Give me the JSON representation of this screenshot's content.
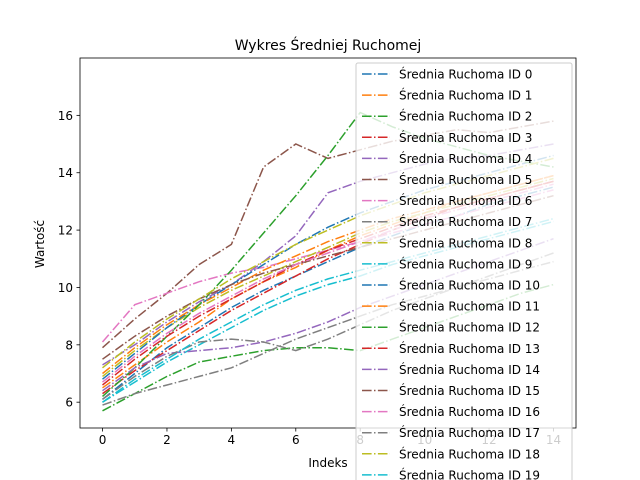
{
  "chart_data": {
    "type": "line",
    "title": "Wykres Średniej Ruchomej",
    "xlabel": "Indeks",
    "ylabel": "Wartość",
    "xlim": [
      -0.7,
      14.7
    ],
    "ylim": [
      5.1,
      18.0
    ],
    "xticks": [
      0,
      2,
      4,
      6,
      8,
      10,
      12,
      14
    ],
    "yticks": [
      6,
      8,
      10,
      12,
      14,
      16
    ],
    "line_style": "dash-dot",
    "legend_position": "top-right",
    "x": [
      0,
      1,
      2,
      3,
      4,
      5,
      6,
      7,
      8,
      9,
      10,
      11,
      12,
      13,
      14
    ],
    "series": [
      {
        "name": "Średnia Ruchoma ID 0",
        "color": "#1f77b4",
        "values": [
          6.1,
          7.0,
          7.9,
          8.6,
          9.3,
          9.9,
          10.4,
          10.9,
          11.4,
          11.8,
          12.2,
          12.5,
          12.9,
          13.2,
          13.5
        ]
      },
      {
        "name": "Średnia Ruchoma ID 1",
        "color": "#ff7f0e",
        "values": [
          6.5,
          7.3,
          8.1,
          8.8,
          9.6,
          10.2,
          10.7,
          11.3,
          11.8,
          12.2,
          12.6,
          13.0,
          13.3,
          13.6,
          13.9
        ]
      },
      {
        "name": "Średnia Ruchoma ID 2",
        "color": "#2ca02c",
        "values": [
          5.7,
          6.3,
          6.9,
          7.4,
          7.6,
          7.8,
          7.9,
          7.9,
          7.8,
          8.2,
          8.6,
          9.0,
          9.4,
          9.8,
          10.1
        ]
      },
      {
        "name": "Średnia Ruchoma ID 3",
        "color": "#d62728",
        "values": [
          6.3,
          7.1,
          7.8,
          8.5,
          9.2,
          9.8,
          10.4,
          11.0,
          11.5,
          12.0,
          12.4,
          12.8,
          13.1,
          13.4,
          13.7
        ]
      },
      {
        "name": "Średnia Ruchoma ID 4",
        "color": "#9467bd",
        "values": [
          7.3,
          8.0,
          8.8,
          9.5,
          10.1,
          10.9,
          11.8,
          13.3,
          13.7,
          14.0,
          14.3,
          14.5,
          14.6,
          14.8,
          15.0
        ]
      },
      {
        "name": "Średnia Ruchoma ID 5",
        "color": "#8c564b",
        "values": [
          7.9,
          8.9,
          9.8,
          10.8,
          11.5,
          14.2,
          15.0,
          14.5,
          14.8,
          15.1,
          15.3,
          15.5,
          15.4,
          15.6,
          15.8
        ]
      },
      {
        "name": "Średnia Ruchoma ID 6",
        "color": "#e377c2",
        "values": [
          8.1,
          9.4,
          9.8,
          10.2,
          10.5,
          10.7,
          11.0,
          11.3,
          11.6,
          11.9,
          12.2,
          12.5,
          12.8,
          13.1,
          13.4
        ]
      },
      {
        "name": "Średnia Ruchoma ID 7",
        "color": "#7f7f7f",
        "values": [
          5.9,
          6.3,
          6.6,
          6.9,
          7.2,
          7.7,
          8.2,
          8.6,
          9.0,
          9.4,
          9.7,
          10.0,
          10.3,
          10.6,
          10.9
        ]
      },
      {
        "name": "Średnia Ruchoma ID 8",
        "color": "#bcbd22",
        "values": [
          6.9,
          7.8,
          8.6,
          9.3,
          9.9,
          10.4,
          10.9,
          11.4,
          11.9,
          12.3,
          12.6,
          12.9,
          13.2,
          13.5,
          13.8
        ]
      },
      {
        "name": "Średnia Ruchoma ID 9",
        "color": "#17becf",
        "values": [
          6.0,
          6.7,
          7.4,
          8.0,
          8.6,
          9.2,
          9.7,
          10.1,
          10.4,
          10.8,
          11.1,
          11.4,
          11.7,
          12.0,
          12.3
        ]
      },
      {
        "name": "Średnia Ruchoma ID 10",
        "color": "#1f77b4",
        "values": [
          6.8,
          7.7,
          8.6,
          9.4,
          10.1,
          10.8,
          11.5,
          12.1,
          12.6,
          13.0,
          13.4,
          13.7,
          14.0,
          14.3,
          14.6
        ]
      },
      {
        "name": "Średnia Ruchoma ID 11",
        "color": "#ff7f0e",
        "values": [
          7.0,
          7.9,
          8.7,
          9.4,
          10.0,
          10.6,
          11.1,
          11.6,
          12.0,
          12.4,
          12.7,
          13.0,
          13.3,
          13.6,
          13.9
        ]
      },
      {
        "name": "Średnia Ruchoma ID 12",
        "color": "#2ca02c",
        "values": [
          6.2,
          7.2,
          8.3,
          9.4,
          10.6,
          11.9,
          13.2,
          14.6,
          16.1,
          15.6,
          15.2,
          14.9,
          14.6,
          14.4,
          14.2
        ]
      },
      {
        "name": "Średnia Ruchoma ID 13",
        "color": "#d62728",
        "values": [
          6.6,
          7.5,
          8.3,
          9.0,
          9.6,
          10.2,
          10.8,
          11.3,
          11.7,
          12.1,
          12.5,
          12.8,
          13.1,
          13.4,
          13.7
        ]
      },
      {
        "name": "Średnia Ruchoma ID 14",
        "color": "#9467bd",
        "values": [
          6.4,
          7.2,
          7.7,
          7.8,
          7.9,
          8.1,
          8.4,
          8.8,
          9.3,
          9.7,
          10.1,
          10.5,
          10.9,
          11.3,
          11.7
        ]
      },
      {
        "name": "Średnia Ruchoma ID 15",
        "color": "#8c564b",
        "values": [
          7.5,
          8.3,
          9.0,
          9.6,
          10.1,
          10.5,
          10.8,
          11.1,
          11.4,
          11.7,
          12.0,
          12.3,
          12.6,
          12.9,
          13.2
        ]
      },
      {
        "name": "Średnia Ruchoma ID 16",
        "color": "#e377c2",
        "values": [
          6.7,
          7.6,
          8.4,
          9.1,
          9.7,
          10.3,
          10.8,
          11.2,
          11.6,
          12.0,
          12.4,
          12.7,
          13.0,
          13.3,
          13.6
        ]
      },
      {
        "name": "Średnia Ruchoma ID 17",
        "color": "#7f7f7f",
        "values": [
          6.1,
          6.9,
          7.6,
          8.1,
          8.2,
          8.1,
          7.8,
          8.2,
          8.7,
          9.2,
          9.6,
          10.0,
          10.4,
          10.8,
          11.2
        ]
      },
      {
        "name": "Średnia Ruchoma ID 18",
        "color": "#bcbd22",
        "values": [
          7.2,
          8.1,
          8.9,
          9.6,
          10.3,
          10.9,
          11.5,
          12.0,
          12.5,
          12.9,
          13.3,
          13.6,
          13.9,
          14.2,
          14.5
        ]
      },
      {
        "name": "Średnia Ruchoma ID 19",
        "color": "#17becf",
        "values": [
          6.0,
          6.8,
          7.5,
          8.2,
          8.8,
          9.4,
          9.9,
          10.3,
          10.6,
          10.9,
          11.2,
          11.5,
          11.8,
          12.1,
          12.4
        ]
      }
    ]
  }
}
